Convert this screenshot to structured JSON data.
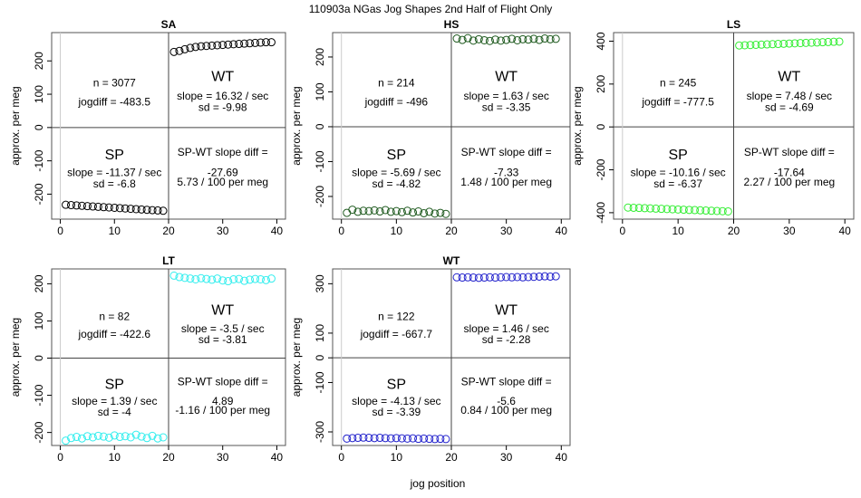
{
  "figure": {
    "title": "110903a   NGas Jog Shapes 2nd Half of Flight Only",
    "xlabel": "jog position",
    "ylabel": "approx. per meg"
  },
  "chart_data": [
    {
      "type": "scatter",
      "title": "SA",
      "color": "#000000",
      "xlim": [
        -1.6,
        41.6
      ],
      "ylim": [
        -275,
        285
      ],
      "yticks": [
        -200,
        -100,
        0,
        100,
        200
      ],
      "xticks": [
        0,
        10,
        20,
        30,
        40
      ],
      "texts": {
        "n": "n = 3077",
        "jogdiff": "jogdiff = -483.5",
        "wt_label": "WT",
        "wt_slope": "slope = 16.32 / sec",
        "wt_sd": "sd = -9.98",
        "sp_label": "SP",
        "sp_slope": "slope = -11.37 / sec",
        "sp_sd": "sd = -6.8",
        "diff_label": "SP-WT slope diff =",
        "diff_value": "-27.69",
        "diff_permeg": "5.73 / 100 per meg"
      },
      "series": [
        {
          "x": [
            1,
            2,
            3,
            4,
            5,
            6,
            7,
            8,
            9,
            10,
            11,
            12,
            13,
            14,
            15,
            16,
            17,
            18,
            19
          ],
          "y": [
            -232,
            -233,
            -234,
            -235,
            -236,
            -237,
            -238,
            -239,
            -240,
            -241,
            -242,
            -243,
            -244,
            -245,
            -246,
            -247,
            -248,
            -249,
            -250
          ]
        },
        {
          "x": [
            21,
            22,
            23,
            24,
            25,
            26,
            27,
            28,
            29,
            30,
            31,
            32,
            33,
            34,
            35,
            36,
            37,
            38,
            39
          ],
          "y": [
            227,
            230,
            235,
            239,
            242,
            244,
            245,
            246,
            247,
            248,
            249,
            250,
            251,
            252,
            253,
            254,
            255,
            256,
            256
          ]
        }
      ]
    },
    {
      "type": "scatter",
      "title": "HS",
      "color": "#1f5a1f",
      "xlim": [
        -1.6,
        41.6
      ],
      "ylim": [
        -265,
        270
      ],
      "yticks": [
        -200,
        -100,
        0,
        100,
        200
      ],
      "xticks": [
        0,
        10,
        20,
        30,
        40
      ],
      "texts": {
        "n": "n = 214",
        "jogdiff": "jogdiff = -496",
        "wt_label": "WT",
        "wt_slope": "slope = 1.63 / sec",
        "wt_sd": "sd = -3.35",
        "sp_label": "SP",
        "sp_slope": "slope = -5.69 / sec",
        "sp_sd": "sd = -4.82",
        "diff_label": "SP-WT slope diff =",
        "diff_value": "-7.33",
        "diff_permeg": "1.48 / 100 per meg"
      },
      "series": [
        {
          "x": [
            1,
            2,
            3,
            4,
            5,
            6,
            7,
            8,
            9,
            10,
            11,
            12,
            13,
            14,
            15,
            16,
            17,
            18,
            19
          ],
          "y": [
            -247,
            -238,
            -244,
            -241,
            -242,
            -240,
            -243,
            -239,
            -244,
            -242,
            -245,
            -241,
            -246,
            -243,
            -248,
            -244,
            -249,
            -247,
            -250
          ]
        },
        {
          "x": [
            21,
            22,
            23,
            24,
            25,
            26,
            27,
            28,
            29,
            30,
            31,
            32,
            33,
            34,
            35,
            36,
            37,
            38,
            39
          ],
          "y": [
            253,
            249,
            254,
            247,
            251,
            248,
            246,
            250,
            247,
            249,
            252,
            248,
            251,
            250,
            252,
            249,
            253,
            251,
            252
          ]
        }
      ]
    },
    {
      "type": "scatter",
      "title": "LS",
      "color": "#33ee33",
      "xlim": [
        -1.6,
        41.6
      ],
      "ylim": [
        -430,
        440
      ],
      "yticks": [
        -400,
        -200,
        0,
        200,
        400
      ],
      "xticks": [
        0,
        10,
        20,
        30,
        40
      ],
      "texts": {
        "n": "n = 245",
        "jogdiff": "jogdiff = -777.5",
        "wt_label": "WT",
        "wt_slope": "slope = 7.48 / sec",
        "wt_sd": "sd = -4.69",
        "sp_label": "SP",
        "sp_slope": "slope = -10.16 / sec",
        "sp_sd": "sd = -6.37",
        "diff_label": "SP-WT slope diff =",
        "diff_value": "-17.64",
        "diff_permeg": "2.27 / 100 per meg"
      },
      "series": [
        {
          "x": [
            1,
            2,
            3,
            4,
            5,
            6,
            7,
            8,
            9,
            10,
            11,
            12,
            13,
            14,
            15,
            16,
            17,
            18,
            19
          ],
          "y": [
            -376,
            -377,
            -378,
            -379,
            -380,
            -381,
            -382,
            -383,
            -384,
            -385,
            -386,
            -387,
            -388,
            -389,
            -390,
            -391,
            -392,
            -393,
            -394
          ]
        },
        {
          "x": [
            21,
            22,
            23,
            24,
            25,
            26,
            27,
            28,
            29,
            30,
            31,
            32,
            33,
            34,
            35,
            36,
            37,
            38,
            39
          ],
          "y": [
            380,
            381,
            382,
            383,
            384,
            385,
            386,
            387,
            388,
            389,
            390,
            391,
            392,
            393,
            394,
            395,
            396,
            397,
            398
          ]
        }
      ]
    },
    {
      "type": "scatter",
      "title": "LT",
      "color": "#33eeee",
      "xlim": [
        -1.6,
        41.6
      ],
      "ylim": [
        -235,
        240
      ],
      "yticks": [
        -200,
        -100,
        0,
        100,
        200
      ],
      "xticks": [
        0,
        10,
        20,
        30,
        40
      ],
      "texts": {
        "n": "n = 82",
        "jogdiff": "jogdiff = -422.6",
        "wt_label": "WT",
        "wt_slope": "slope = -3.5 / sec",
        "wt_sd": "sd = -3.81",
        "sp_label": "SP",
        "sp_slope": "slope = 1.39 / sec",
        "sp_sd": "sd = -4",
        "diff_label": "SP-WT slope diff =",
        "diff_value": "4.89",
        "diff_permeg": "-1.16 / 100 per meg"
      },
      "series": [
        {
          "x": [
            1,
            2,
            3,
            4,
            5,
            6,
            7,
            8,
            9,
            10,
            11,
            12,
            13,
            14,
            15,
            16,
            17,
            18,
            19
          ],
          "y": [
            -222,
            -215,
            -212,
            -216,
            -210,
            -213,
            -209,
            -211,
            -214,
            -208,
            -212,
            -210,
            -213,
            -206,
            -211,
            -215,
            -209,
            -216,
            -213
          ]
        },
        {
          "x": [
            21,
            22,
            23,
            24,
            25,
            26,
            27,
            28,
            29,
            30,
            31,
            32,
            33,
            34,
            35,
            36,
            37,
            38,
            39
          ],
          "y": [
            222,
            218,
            216,
            214,
            212,
            215,
            213,
            211,
            214,
            209,
            207,
            212,
            213,
            208,
            211,
            213,
            212,
            210,
            214
          ]
        }
      ]
    },
    {
      "type": "scatter",
      "title": "WT",
      "color": "#2222cc",
      "xlim": [
        -1.6,
        41.6
      ],
      "ylim": [
        -355,
        360
      ],
      "yticks": [
        -300,
        -100,
        0,
        100,
        300
      ],
      "xticks": [
        0,
        10,
        20,
        30,
        40
      ],
      "texts": {
        "n": "n = 122",
        "jogdiff": "jogdiff = -667.7",
        "wt_label": "WT",
        "wt_slope": "slope = 1.46 / sec",
        "wt_sd": "sd = -2.28",
        "sp_label": "SP",
        "sp_slope": "slope = -4.13 / sec",
        "sp_sd": "sd = -3.39",
        "diff_label": "SP-WT slope diff =",
        "diff_value": "-5.6",
        "diff_permeg": "0.84 / 100 per meg"
      },
      "series": [
        {
          "x": [
            1,
            2,
            3,
            4,
            5,
            6,
            7,
            8,
            9,
            10,
            11,
            12,
            13,
            14,
            15,
            16,
            17,
            18,
            19
          ],
          "y": [
            -327,
            -325,
            -324,
            -323,
            -324,
            -325,
            -324,
            -325,
            -326,
            -325,
            -326,
            -327,
            -326,
            -328,
            -327,
            -328,
            -329,
            -328,
            -329
          ]
        },
        {
          "x": [
            21,
            22,
            23,
            24,
            25,
            26,
            27,
            28,
            29,
            30,
            31,
            32,
            33,
            34,
            35,
            36,
            37,
            38,
            39
          ],
          "y": [
            326,
            325,
            326,
            325,
            324,
            325,
            326,
            325,
            326,
            327,
            326,
            327,
            326,
            327,
            328,
            329,
            330,
            329,
            330
          ]
        }
      ]
    }
  ]
}
